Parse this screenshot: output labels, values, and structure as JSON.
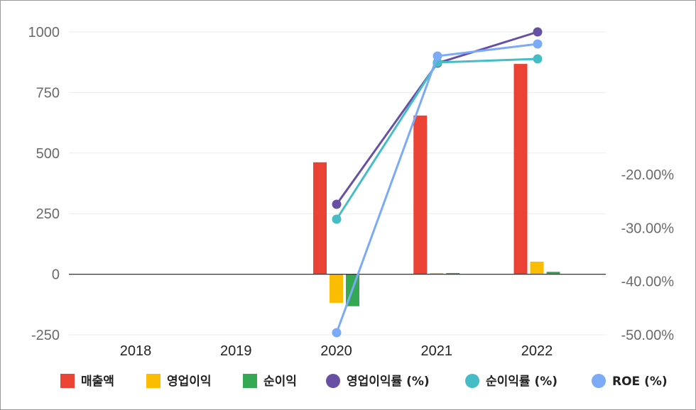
{
  "chart_data": {
    "type": "bar",
    "categories": [
      "2018",
      "2019",
      "2020",
      "2021",
      "2022"
    ],
    "bar_series": [
      {
        "name": "매출액",
        "color": "#ea4335",
        "values": [
          null,
          null,
          462,
          655,
          868
        ]
      },
      {
        "name": "영업이익",
        "color": "#fbbc04",
        "values": [
          null,
          null,
          -118,
          5,
          52
        ]
      },
      {
        "name": "순이익",
        "color": "#34a853",
        "values": [
          null,
          null,
          -132,
          5,
          10
        ]
      }
    ],
    "line_series": [
      {
        "name": "영업이익률 (%)",
        "color": "#6750a4",
        "values": [
          null,
          null,
          -25.5,
          null,
          0.75
        ]
      },
      {
        "name": "순이익률 (%)",
        "color": "#46bdc6",
        "values": [
          null,
          null,
          -28.6,
          null,
          0.75
        ]
      },
      {
        "name": "ROE (%)",
        "color": "#7baaf7",
        "values": [
          null,
          null,
          -50.0,
          null,
          0.75
        ]
      }
    ],
    "left_axis": {
      "ylim": [
        -250,
        1000
      ],
      "ticks": [
        "1000",
        "750",
        "500",
        "250",
        "0",
        "-250"
      ]
    },
    "right_axis": {
      "ticks": [
        "-20.00%",
        "-30.00%",
        "-40.00%",
        "-50.00%"
      ]
    },
    "grid": true,
    "legend_position": "bottom"
  }
}
